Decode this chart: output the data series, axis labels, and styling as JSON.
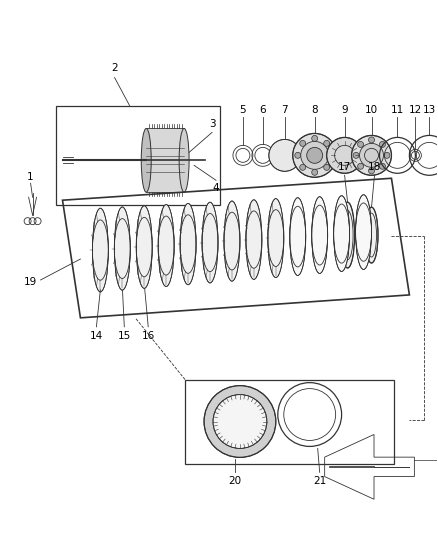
{
  "bg_color": "#ffffff",
  "fig_width": 4.38,
  "fig_height": 5.33,
  "dpi": 100,
  "line_color": "#333333",
  "label_color": "#000000",
  "gray_fill": "#cccccc",
  "dark_fill": "#555555"
}
